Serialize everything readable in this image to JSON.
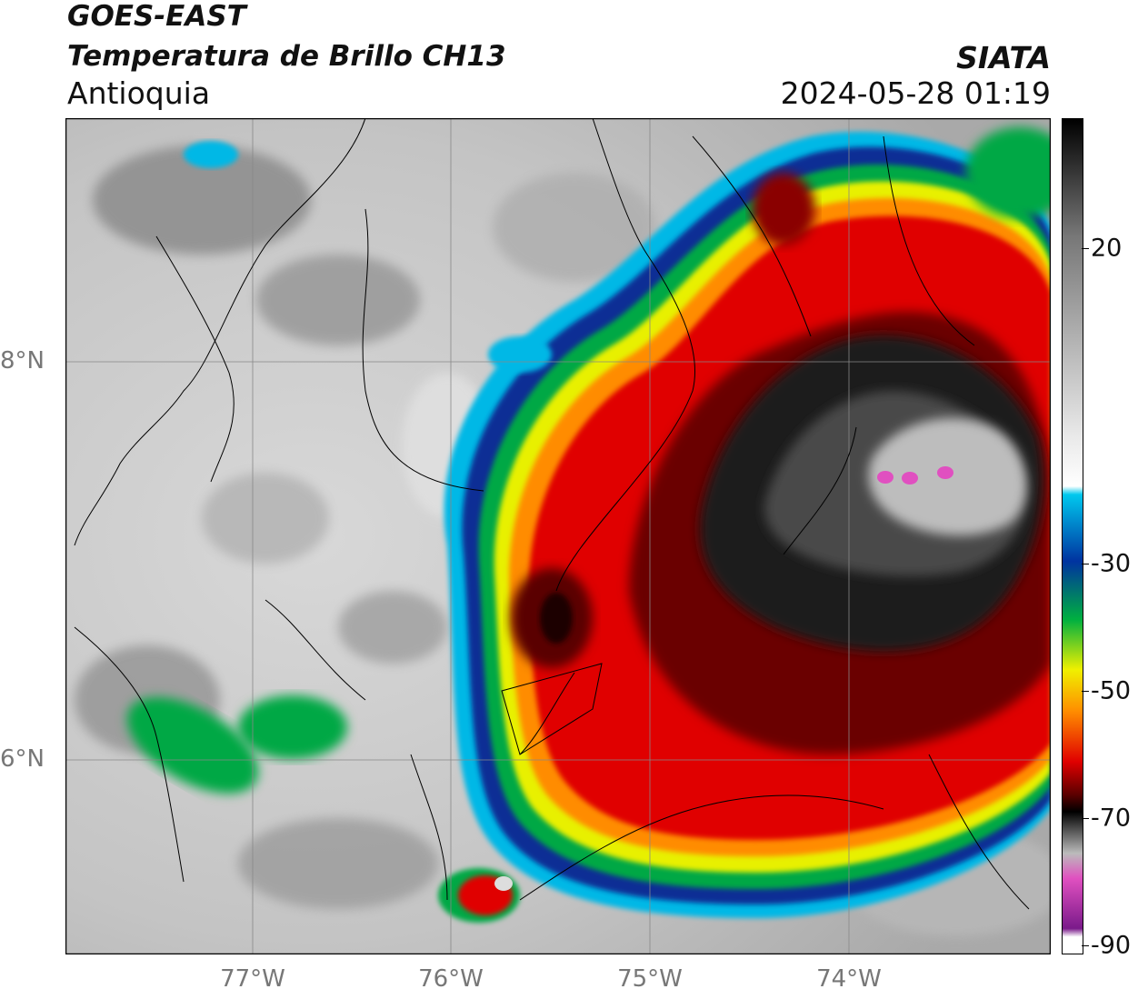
{
  "header": {
    "satellite": "GOES-EAST",
    "product": "Temperatura de Brillo CH13",
    "region": "Antioquia",
    "brand": "SIATA",
    "timestamp": "2024-05-28 01:19"
  },
  "axes": {
    "lat_labels": [
      "8°N",
      "6°N"
    ],
    "lon_labels": [
      "77°W",
      "76°W",
      "75°W",
      "74°W"
    ]
  },
  "colorbar": {
    "labels": [
      "20",
      "-30",
      "-50",
      "-70",
      "-90"
    ],
    "colors": {
      "hot": "#e9e9e9",
      "cyan": "#00c8ee",
      "blue": "#0033a0",
      "green": "#00b040",
      "yellow": "#f0f000",
      "orange": "#ff8c00",
      "red": "#e00000",
      "darkred": "#5a0000",
      "black": "#000000",
      "magenta": "#e050c0",
      "purple": "#7a1a8a"
    }
  }
}
